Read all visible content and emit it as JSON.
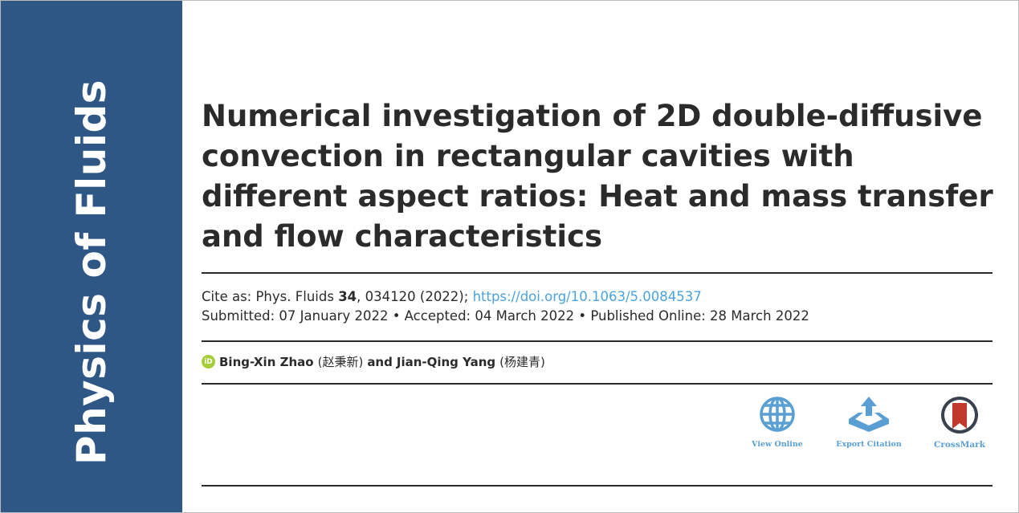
{
  "sidebar": {
    "journal": "Physics of Fluids",
    "color": "#2e5786"
  },
  "article": {
    "title": "Numerical investigation of 2D double-diffusive convection in rectangular cavities with different aspect ratios: Heat and mass transfer and flow characteristics",
    "cite_prefix": "Cite as: Phys. Fluids ",
    "volume": "34",
    "cite_rest": ", 034120 (2022); ",
    "doi": "https://doi.org/10.1063/5.0084537",
    "dates": "Submitted: 07 January 2022 • Accepted: 04 March 2022 • Published Online: 28 March 2022",
    "orcid_badge": "iD",
    "author1": "Bing-Xin Zhao",
    "author1_cn": "(赵秉新)",
    "and": "and",
    "author2": "Jian-Qing Yang",
    "author2_cn": "(杨建青)"
  },
  "tools": {
    "view_online": "View Online",
    "export_citation": "Export Citation",
    "crossmark": "CrossMark",
    "accent": "#5a9fd4"
  }
}
